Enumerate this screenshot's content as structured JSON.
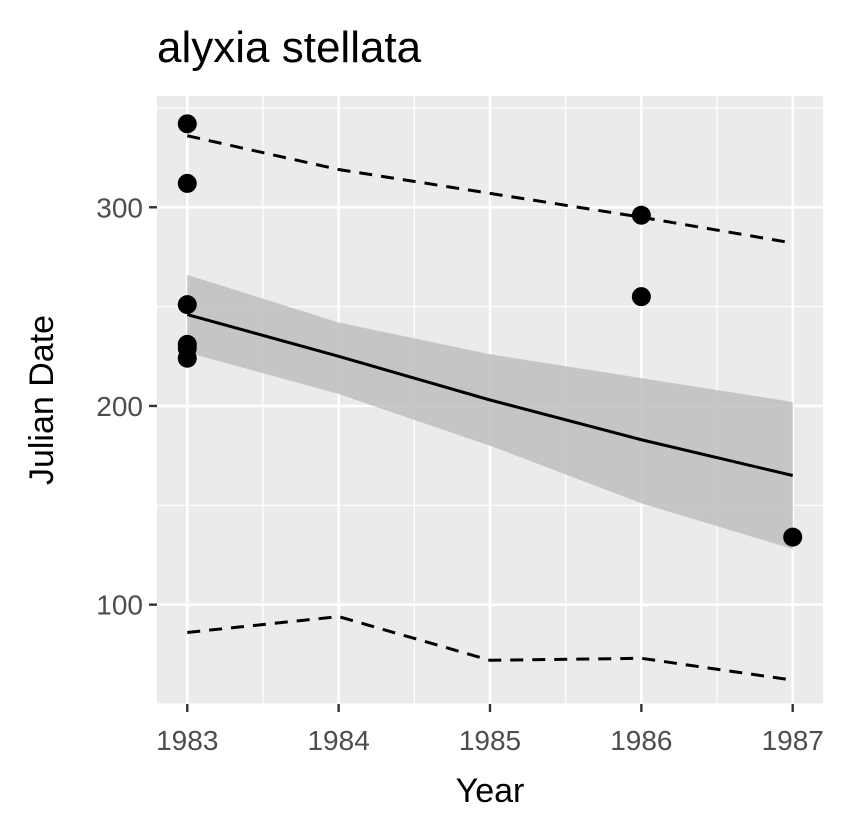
{
  "chart_data": {
    "type": "scatter",
    "title": "alyxia stellata",
    "xlabel": "Year",
    "ylabel": "Julian Date",
    "xlim": [
      1982.8,
      1987.2
    ],
    "ylim": [
      50,
      356
    ],
    "x_ticks": [
      1983,
      1984,
      1985,
      1986,
      1987
    ],
    "y_ticks": [
      100,
      200,
      300
    ],
    "grid": true,
    "points": [
      {
        "x": 1983,
        "y": 342
      },
      {
        "x": 1983,
        "y": 312
      },
      {
        "x": 1983,
        "y": 251
      },
      {
        "x": 1983,
        "y": 231
      },
      {
        "x": 1983,
        "y": 229
      },
      {
        "x": 1983,
        "y": 224
      },
      {
        "x": 1986,
        "y": 296
      },
      {
        "x": 1986,
        "y": 255
      },
      {
        "x": 1987,
        "y": 134
      }
    ],
    "fit_line": {
      "x": [
        1983,
        1984,
        1985,
        1986,
        1987
      ],
      "y": [
        246,
        225,
        203,
        183,
        165
      ]
    },
    "confidence_band": {
      "x": [
        1983,
        1984,
        1985,
        1986,
        1987
      ],
      "upper": [
        266,
        242,
        226,
        214,
        202
      ],
      "lower": [
        227,
        206,
        180,
        151,
        128
      ]
    },
    "upper_quantile": {
      "x": [
        1983,
        1984,
        1985,
        1986,
        1987
      ],
      "y": [
        336,
        319,
        307,
        295,
        282
      ]
    },
    "lower_quantile": {
      "x": [
        1983,
        1984,
        1985,
        1986,
        1987
      ],
      "y": [
        86,
        94,
        72,
        73,
        62
      ]
    },
    "colors": {
      "panel": "#ebebeb",
      "grid": "#ffffff",
      "band": "#bebebe",
      "line": "#000000",
      "point": "#000000",
      "tick_text": "#4d4d4d"
    }
  }
}
